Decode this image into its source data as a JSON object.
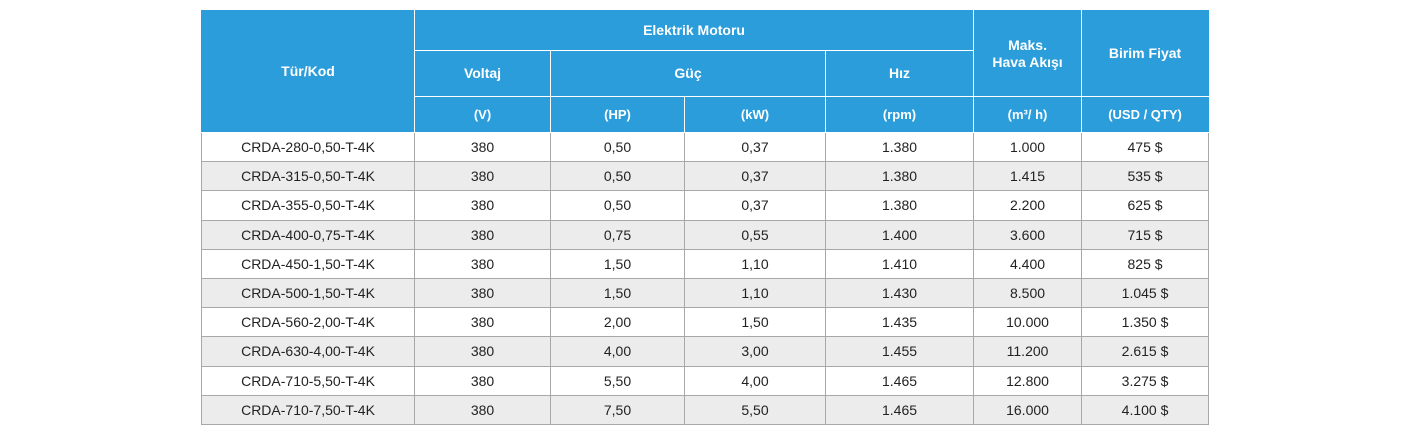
{
  "header": {
    "code": "Tür/Kod",
    "group": "Elektrik Motoru",
    "voltage": "Voltaj",
    "power": "Güç",
    "speed": "Hız",
    "airflow": [
      "Maks.",
      "Hava Akışı"
    ],
    "price": "Birim Fiyat",
    "units": [
      "(V)",
      "(HP)",
      "(kW)",
      "(rpm)",
      "(m³/ h)",
      "(USD / QTY)"
    ]
  },
  "table": {
    "rows": [
      [
        "CRDA-280-0,50-T-4K",
        "380",
        "0,50",
        "0,37",
        "1.380",
        "1.000",
        "475 $"
      ],
      [
        "CRDA-315-0,50-T-4K",
        "380",
        "0,50",
        "0,37",
        "1.380",
        "1.415",
        "535 $"
      ],
      [
        "CRDA-355-0,50-T-4K",
        "380",
        "0,50",
        "0,37",
        "1.380",
        "2.200",
        "625 $"
      ],
      [
        "CRDA-400-0,75-T-4K",
        "380",
        "0,75",
        "0,55",
        "1.400",
        "3.600",
        "715 $"
      ],
      [
        "CRDA-450-1,50-T-4K",
        "380",
        "1,50",
        "1,10",
        "1.410",
        "4.400",
        "825 $"
      ],
      [
        "CRDA-500-1,50-T-4K",
        "380",
        "1,50",
        "1,10",
        "1.430",
        "8.500",
        "1.045 $"
      ],
      [
        "CRDA-560-2,00-T-4K",
        "380",
        "2,00",
        "1,50",
        "1.435",
        "10.000",
        "1.350 $"
      ],
      [
        "CRDA-630-4,00-T-4K",
        "380",
        "4,00",
        "3,00",
        "1.455",
        "11.200",
        "2.615 $"
      ],
      [
        "CRDA-710-5,50-T-4K",
        "380",
        "5,50",
        "4,00",
        "1.465",
        "12.800",
        "3.275 $"
      ],
      [
        "CRDA-710-7,50-T-4K",
        "380",
        "7,50",
        "5,50",
        "1.465",
        "16.000",
        "4.100 $"
      ]
    ]
  }
}
